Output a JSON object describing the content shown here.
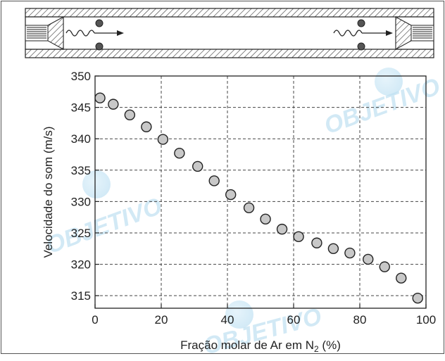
{
  "watermark_text": "OBJETIVO",
  "chart_data": {
    "type": "scatter",
    "title": "",
    "xlabel_main": "Fração molar de Ar em N",
    "xlabel_sub": "2",
    "xlabel_tail": " (%)",
    "ylabel": "Velocidade do som (m/s)",
    "xlim": [
      0,
      100
    ],
    "ylim": [
      313,
      350
    ],
    "xticks": [
      0,
      20,
      40,
      60,
      80,
      100
    ],
    "yticks": [
      315,
      320,
      325,
      330,
      335,
      340,
      345,
      350
    ],
    "grid": true,
    "marker_color": "#c8c8c8",
    "series": [
      {
        "x": [
          1.5,
          5.5,
          10.5,
          15.5,
          20.5,
          25.5,
          31,
          36,
          41,
          46.5,
          51.5,
          56.5,
          61.5,
          67,
          72,
          77,
          82.5,
          87.5,
          92.5,
          97.5
        ],
        "y": [
          346.5,
          345.5,
          343.8,
          341.9,
          339.9,
          337.7,
          335.6,
          333.3,
          331.1,
          329.0,
          327.2,
          325.6,
          324.4,
          323.4,
          322.5,
          321.8,
          320.8,
          319.6,
          317.8,
          314.6
        ]
      }
    ]
  }
}
